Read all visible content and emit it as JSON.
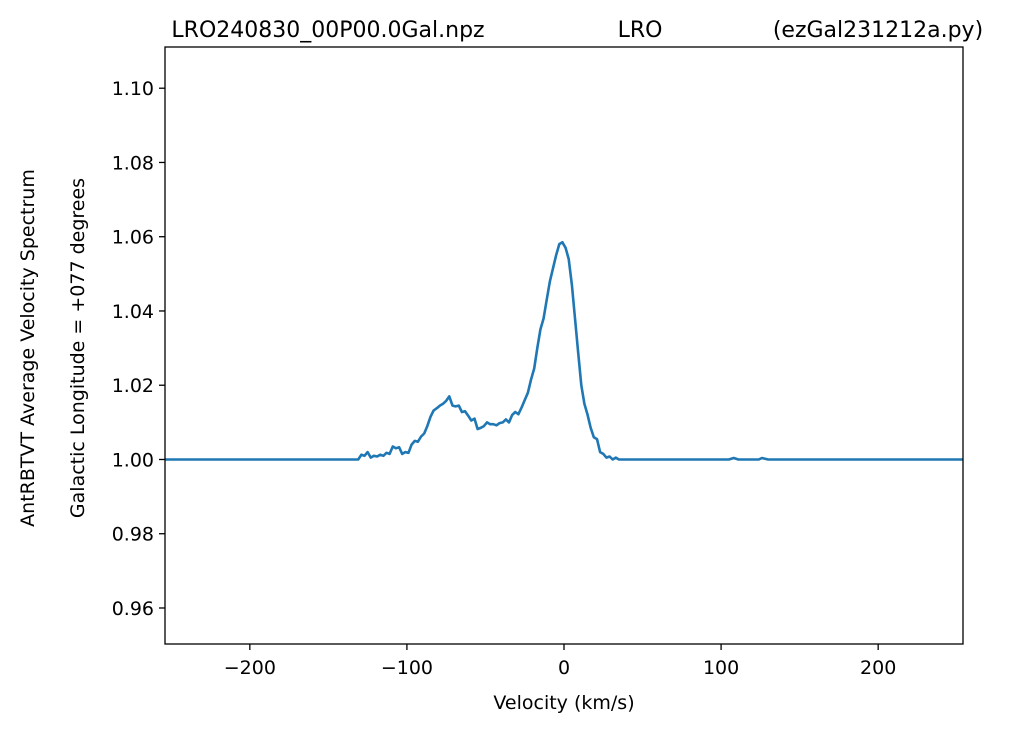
{
  "chart_data": {
    "type": "line",
    "title_parts": [
      "LRO240830_00P00.0Gal.npz",
      "LRO",
      "(ezGal231212a.py)"
    ],
    "xlabel": "Velocity (km/s)",
    "ylabel_lines": [
      "AntRBTVT Average Velocity Spectrum",
      "Galactic Longitude = +077 degrees"
    ],
    "xlim": [
      -254,
      254
    ],
    "ylim": [
      0.9503,
      1.1111
    ],
    "xticks": [
      -200,
      -100,
      0,
      100,
      200
    ],
    "xtick_labels": [
      "−200",
      "−100",
      "0",
      "100",
      "200"
    ],
    "yticks": [
      0.96,
      0.98,
      1.0,
      1.02,
      1.04,
      1.06,
      1.08,
      1.1
    ],
    "ytick_labels": [
      "0.96",
      "0.98",
      "1.00",
      "1.02",
      "1.04",
      "1.06",
      "1.08",
      "1.10"
    ],
    "grid": false,
    "line_color": "#1f77b4",
    "series": [
      {
        "x": [
          -254,
          -200,
          -150,
          -131,
          -129,
          -127,
          -125,
          -123,
          -121,
          -119,
          -117,
          -115,
          -113,
          -111,
          -109,
          -107,
          -105,
          -103,
          -101,
          -99,
          -97,
          -95,
          -93,
          -91,
          -89,
          -87,
          -85,
          -83,
          -81,
          -79,
          -77,
          -75,
          -73,
          -71,
          -69,
          -67,
          -65,
          -63,
          -61,
          -59,
          -57,
          -55,
          -53,
          -51,
          -49,
          -47,
          -45,
          -43,
          -41,
          -39,
          -37,
          -35,
          -33,
          -31,
          -29,
          -27,
          -25,
          -23,
          -21,
          -19,
          -17,
          -15,
          -13,
          -11,
          -9,
          -7,
          -5,
          -3,
          -1,
          1,
          3,
          5,
          7,
          9,
          11,
          13,
          15,
          17,
          19,
          21,
          23,
          25,
          27,
          29,
          31,
          33,
          35,
          37,
          39,
          41,
          43,
          45,
          47,
          50,
          80,
          105,
          108,
          111,
          120,
          124,
          126,
          130,
          160,
          200,
          254
        ],
        "y": [
          1.0,
          1.0,
          1.0,
          1.0,
          1.0013,
          1.001,
          1.002,
          1.0005,
          1.001,
          1.0008,
          1.0013,
          1.001,
          1.0018,
          1.0015,
          1.0035,
          1.003,
          1.0033,
          1.0015,
          1.002,
          1.0018,
          1.004,
          1.005,
          1.0048,
          1.0062,
          1.007,
          1.009,
          1.0115,
          1.0132,
          1.0138,
          1.0145,
          1.015,
          1.0158,
          1.017,
          1.0145,
          1.0143,
          1.0145,
          1.0128,
          1.013,
          1.0118,
          1.0105,
          1.011,
          1.0082,
          1.0085,
          1.009,
          1.01,
          1.0095,
          1.0095,
          1.0092,
          1.0098,
          1.01,
          1.0108,
          1.01,
          1.012,
          1.0128,
          1.0122,
          1.014,
          1.016,
          1.018,
          1.0215,
          1.0245,
          1.03,
          1.035,
          1.038,
          1.043,
          1.048,
          1.0515,
          1.055,
          1.058,
          1.0585,
          1.057,
          1.054,
          1.047,
          1.038,
          1.029,
          1.02,
          1.015,
          1.012,
          1.0085,
          1.006,
          1.0055,
          1.002,
          1.0015,
          1.0005,
          1.0008,
          1.0,
          1.0005,
          1.0,
          1.0,
          1.0,
          1.0,
          1.0,
          1.0,
          1.0,
          1.0,
          1.0,
          1.0,
          1.0004,
          1.0,
          1.0,
          1.0,
          1.0004,
          1.0,
          1.0,
          1.0,
          1.0
        ]
      }
    ]
  }
}
